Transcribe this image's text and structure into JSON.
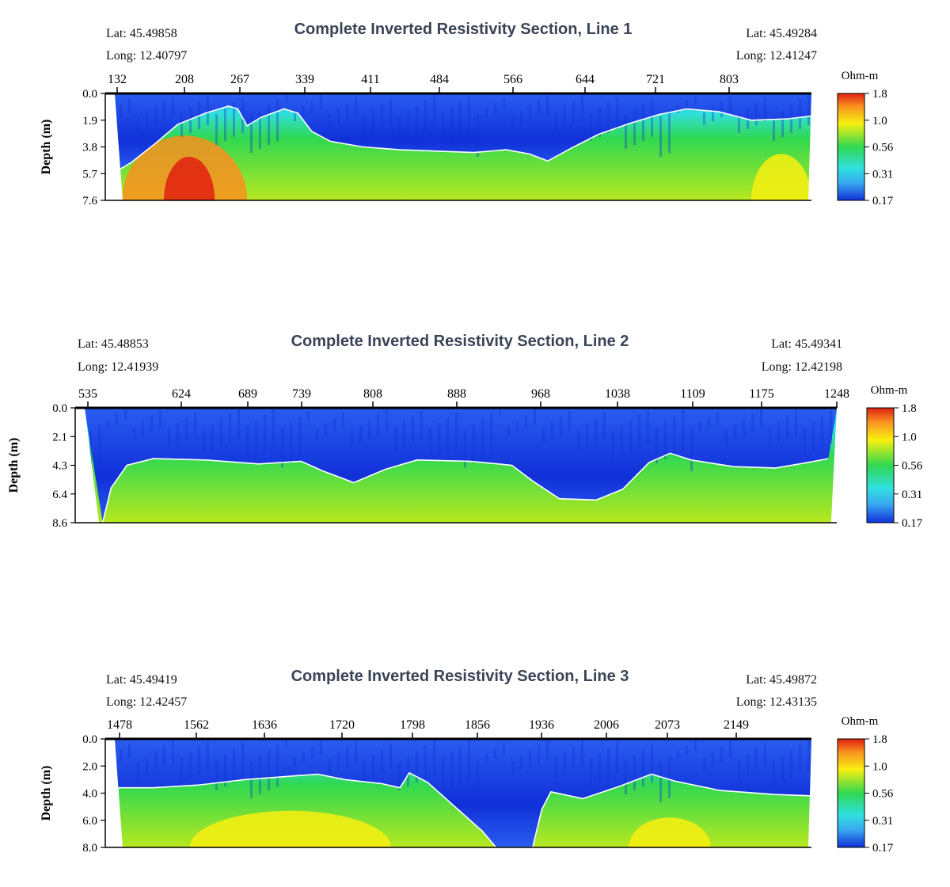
{
  "colors": {
    "deep_blue": "#1030d8",
    "blue": "#2a5cf0",
    "light_blue": "#38a8f0",
    "cyan": "#30e0e0",
    "green": "#30d850",
    "lime": "#b8e820",
    "yellow": "#f8f010",
    "orange": "#f89020",
    "red": "#e02010",
    "boundary": "#ffffff"
  },
  "chart_data": [
    {
      "type": "heatmap",
      "title": "Complete Inverted Resistivity Section, Line 1",
      "lat_start_label": "Lat:",
      "lat_start": "45.49858",
      "long_start_label": "Long:",
      "long_start": "12.40797",
      "lat_end_label": "Lat:",
      "lat_end": "45.49284",
      "long_end_label": "Long:",
      "long_end": "12.41247",
      "x_ticks": [
        "132",
        "208",
        "267",
        "339",
        "411",
        "484",
        "566",
        "644",
        "721",
        "803"
      ],
      "x_range": [
        132,
        885
      ],
      "ylabel": "Depth (m)",
      "y_ticks": [
        "0.0",
        "1.9",
        "3.8",
        "5.7",
        "7.6"
      ],
      "y_range": [
        0,
        7.6
      ],
      "colorbar_title": "Ohm-m",
      "colorbar_ticks": [
        "1.8",
        "1.0",
        "0.56",
        "0.31",
        "0.17"
      ],
      "boundary_depth_m": [
        [
          132,
          5.6
        ],
        [
          150,
          4.9
        ],
        [
          175,
          3.6
        ],
        [
          200,
          2.2
        ],
        [
          230,
          1.4
        ],
        [
          255,
          0.9
        ],
        [
          265,
          1.1
        ],
        [
          275,
          2.3
        ],
        [
          290,
          1.7
        ],
        [
          315,
          1.1
        ],
        [
          330,
          1.4
        ],
        [
          345,
          2.7
        ],
        [
          365,
          3.4
        ],
        [
          400,
          3.8
        ],
        [
          440,
          4.0
        ],
        [
          480,
          4.1
        ],
        [
          520,
          4.2
        ],
        [
          555,
          4.0
        ],
        [
          580,
          4.3
        ],
        [
          600,
          4.8
        ],
        [
          625,
          3.9
        ],
        [
          655,
          2.9
        ],
        [
          690,
          2.1
        ],
        [
          720,
          1.5
        ],
        [
          750,
          1.1
        ],
        [
          785,
          1.3
        ],
        [
          820,
          1.9
        ],
        [
          860,
          1.8
        ],
        [
          885,
          1.6
        ]
      ],
      "hot_zones": [
        {
          "x": [
            140,
            275
          ],
          "depth": [
            3.0,
            7.6
          ],
          "color": "orange"
        },
        {
          "x": [
            185,
            240
          ],
          "depth": [
            4.5,
            7.6
          ],
          "color": "red"
        },
        {
          "x": [
            820,
            885
          ],
          "depth": [
            4.3,
            7.6
          ],
          "color": "yellow"
        }
      ]
    },
    {
      "type": "heatmap",
      "title": "Complete Inverted Resistivity Section, Line 2",
      "lat_start_label": "Lat:",
      "lat_start": "45.48853",
      "long_start_label": "Long:",
      "long_start": "12.41939",
      "lat_end_label": "Lat:",
      "lat_end": "45.49341",
      "long_end_label": "Long:",
      "long_end": "12.42198",
      "x_ticks": [
        "535",
        "624",
        "689",
        "739",
        "808",
        "888",
        "968",
        "1038",
        "1109",
        "1175",
        "1248"
      ],
      "x_range": [
        535,
        1248
      ],
      "ylabel": "Depth (m)",
      "y_ticks": [
        "0.0",
        "2.1",
        "4.3",
        "6.4",
        "8.6"
      ],
      "y_range": [
        0,
        8.6
      ],
      "colorbar_title": "Ohm-m",
      "colorbar_ticks": [
        "1.8",
        "1.0",
        "0.56",
        "0.31",
        "0.17"
      ],
      "boundary_depth_m": [
        [
          552,
          8.6
        ],
        [
          560,
          6.0
        ],
        [
          575,
          4.3
        ],
        [
          600,
          3.8
        ],
        [
          650,
          3.9
        ],
        [
          700,
          4.2
        ],
        [
          740,
          4.0
        ],
        [
          760,
          4.7
        ],
        [
          790,
          5.6
        ],
        [
          820,
          4.6
        ],
        [
          850,
          3.9
        ],
        [
          900,
          4.0
        ],
        [
          940,
          4.3
        ],
        [
          960,
          5.5
        ],
        [
          985,
          6.8
        ],
        [
          1020,
          6.9
        ],
        [
          1045,
          6.1
        ],
        [
          1070,
          4.1
        ],
        [
          1090,
          3.4
        ],
        [
          1110,
          3.9
        ],
        [
          1150,
          4.4
        ],
        [
          1190,
          4.5
        ],
        [
          1220,
          4.1
        ],
        [
          1240,
          3.8
        ]
      ],
      "hot_zones": []
    },
    {
      "type": "heatmap",
      "title": "Complete Inverted Resistivity Section, Line 3",
      "lat_start_label": "Lat:",
      "lat_start": "45.49419",
      "long_start_label": "Long:",
      "long_start": "12.42457",
      "lat_end_label": "Lat:",
      "lat_end": "45.49872",
      "long_end_label": "Long:",
      "long_end": "12.43135",
      "x_ticks": [
        "1478",
        "1562",
        "1636",
        "1720",
        "1798",
        "1856",
        "1936",
        "2006",
        "2073",
        "2149"
      ],
      "x_range": [
        1478,
        2240
      ],
      "ylabel": "Depth (m)",
      "y_ticks": [
        "0.0",
        "2.0",
        "4.0",
        "6.0",
        "8.0"
      ],
      "y_range": [
        0,
        8.0
      ],
      "colorbar_title": "Ohm-m",
      "colorbar_ticks": [
        "1.8",
        "1.0",
        "0.56",
        "0.31",
        "0.17"
      ],
      "boundary_depth_m": [
        [
          1478,
          3.6
        ],
        [
          1520,
          3.6
        ],
        [
          1570,
          3.4
        ],
        [
          1620,
          3.0
        ],
        [
          1660,
          2.8
        ],
        [
          1700,
          2.6
        ],
        [
          1730,
          3.0
        ],
        [
          1770,
          3.3
        ],
        [
          1790,
          3.6
        ],
        [
          1800,
          2.5
        ],
        [
          1820,
          3.2
        ],
        [
          1850,
          5.0
        ],
        [
          1880,
          6.8
        ],
        [
          1895,
          8.0
        ],
        [
          1935,
          8.0
        ],
        [
          1945,
          5.2
        ],
        [
          1955,
          3.9
        ],
        [
          1990,
          4.4
        ],
        [
          2030,
          3.5
        ],
        [
          2065,
          2.6
        ],
        [
          2090,
          3.1
        ],
        [
          2140,
          3.8
        ],
        [
          2200,
          4.1
        ],
        [
          2240,
          4.2
        ]
      ],
      "hot_zones": [
        {
          "x": [
            1560,
            1780
          ],
          "depth": [
            5.3,
            8.0
          ],
          "color": "yellow"
        },
        {
          "x": [
            2040,
            2130
          ],
          "depth": [
            5.8,
            8.0
          ],
          "color": "yellow"
        }
      ]
    }
  ]
}
